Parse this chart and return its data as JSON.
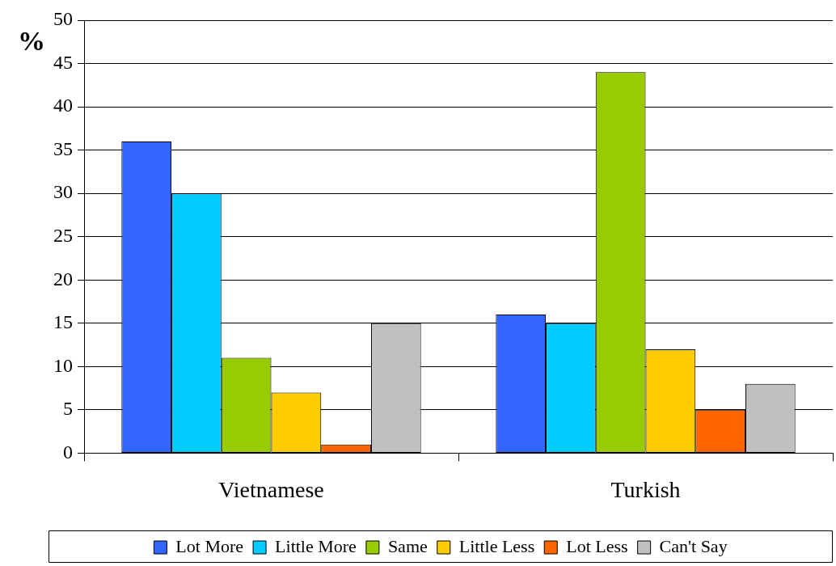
{
  "chart_data": {
    "type": "bar",
    "ylabel": "%",
    "categories": [
      "Vietnamese",
      "Turkish"
    ],
    "series": [
      {
        "name": "Lot More",
        "color": "#3366ff",
        "values": [
          36,
          16
        ]
      },
      {
        "name": "Little More",
        "color": "#00ccff",
        "values": [
          30,
          15
        ]
      },
      {
        "name": "Same",
        "color": "#99cc00",
        "values": [
          11,
          44
        ]
      },
      {
        "name": "Little Less",
        "color": "#ffcc00",
        "values": [
          7,
          12
        ]
      },
      {
        "name": "Lot Less",
        "color": "#ff6600",
        "values": [
          1,
          5
        ]
      },
      {
        "name": "Can't Say",
        "color": "#c0c0c0",
        "values": [
          15,
          8
        ]
      }
    ],
    "ylim": [
      0,
      50
    ],
    "yticks": [
      0,
      5,
      10,
      15,
      20,
      25,
      30,
      35,
      40,
      45,
      50
    ],
    "grid": "y",
    "legend": "bottom"
  }
}
